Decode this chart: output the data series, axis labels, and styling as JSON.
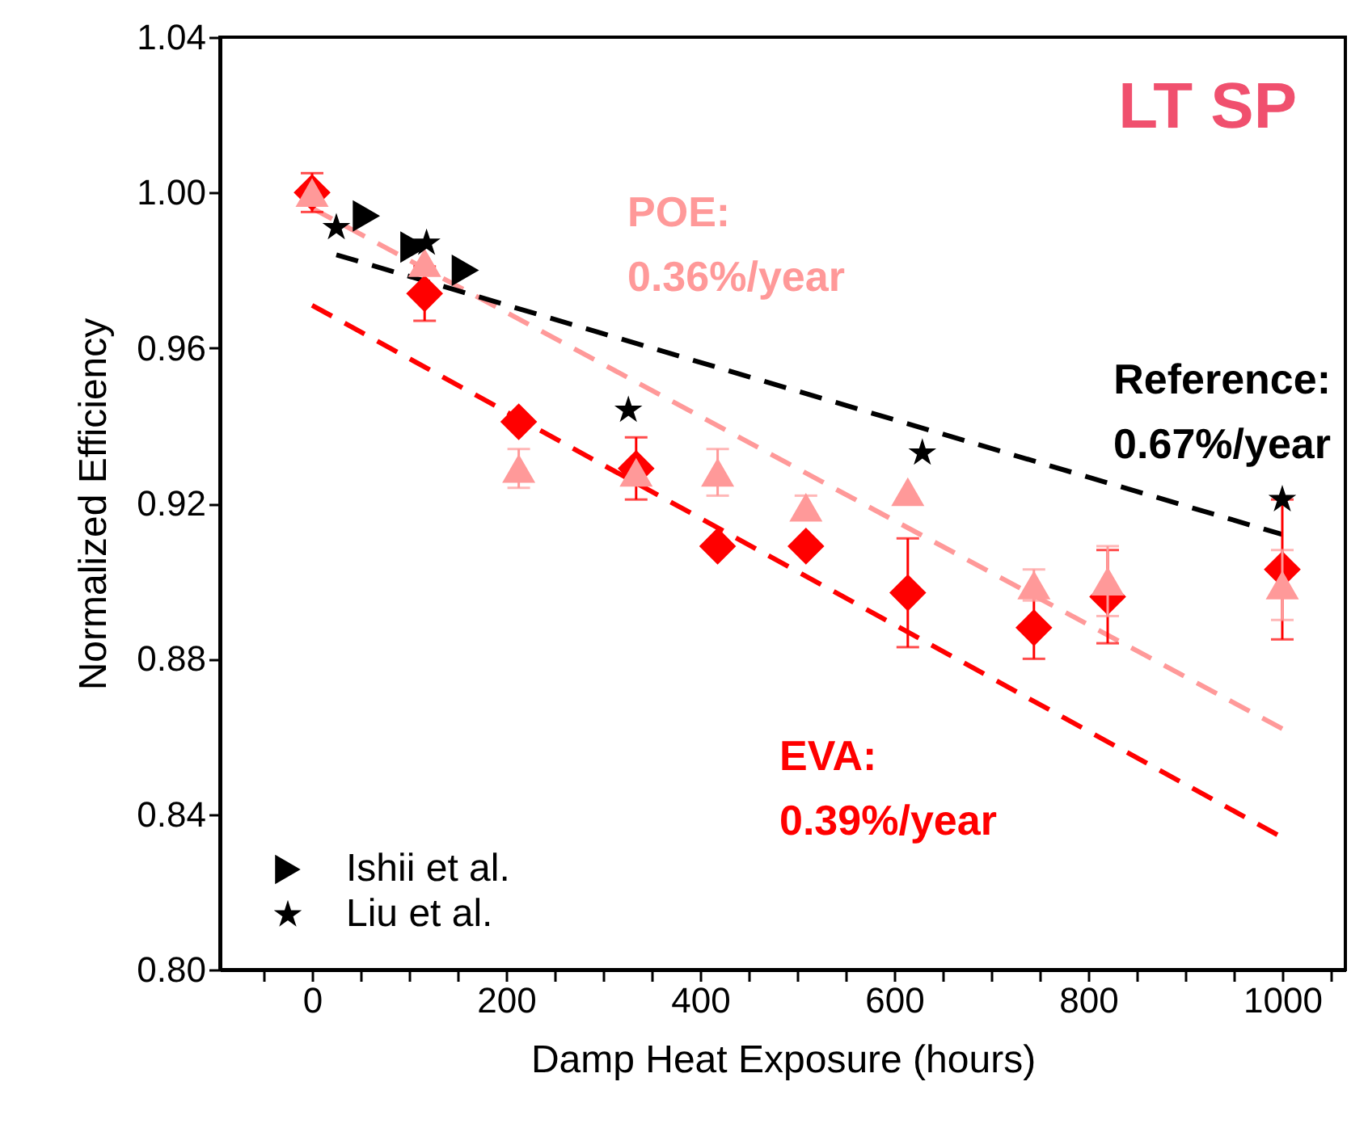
{
  "chart_data": {
    "type": "scatter",
    "title": "LT SP",
    "xlabel": "Damp Heat Exposure (hours)",
    "ylabel": "Normalized Efficiency",
    "xlim": [
      -95,
      1065
    ],
    "ylim": [
      0.8,
      1.04
    ],
    "xticks": [
      {
        "value": -50,
        "label": null
      },
      0,
      {
        "value": 50,
        "label": null
      },
      {
        "value": 100,
        "label": null
      },
      {
        "value": 150,
        "label": null
      },
      200,
      {
        "value": 250,
        "label": null
      },
      {
        "value": 300,
        "label": null
      },
      {
        "value": 350,
        "label": null
      },
      400,
      {
        "value": 450,
        "label": null
      },
      {
        "value": 500,
        "label": null
      },
      {
        "value": 550,
        "label": null
      },
      600,
      {
        "value": 650,
        "label": null
      },
      {
        "value": 700,
        "label": null
      },
      {
        "value": 750,
        "label": null
      },
      800,
      {
        "value": 850,
        "label": null
      },
      {
        "value": 900,
        "label": null
      },
      {
        "value": 950,
        "label": null
      },
      1000,
      {
        "value": 1050,
        "label": null
      }
    ],
    "yticks": [
      {
        "value": 0.8,
        "label": "0.80"
      },
      0.84,
      0.88,
      0.92,
      0.96,
      {
        "value": 1.0,
        "label": "1.00"
      },
      1.04
    ],
    "grid": false,
    "legend": "bottom left",
    "series": [
      {
        "marker": "diamond",
        "color": "#ff0000",
        "x": [
          0,
          116,
          213,
          334,
          418,
          509,
          614,
          744,
          820,
          1000
        ],
        "values": [
          1.0,
          0.974,
          0.941,
          0.929,
          0.909,
          0.909,
          0.897,
          0.888,
          0.896,
          0.903
        ],
        "errors": [
          0.005,
          0.007,
          null,
          0.008,
          null,
          null,
          0.014,
          0.008,
          0.012,
          0.018
        ]
      },
      {
        "marker": "triangle",
        "color": "#ff9999",
        "x": [
          0,
          116,
          213,
          334,
          418,
          509,
          614,
          744,
          820,
          1000
        ],
        "values": [
          1.0,
          0.982,
          0.929,
          0.928,
          0.928,
          0.919,
          0.923,
          0.899,
          0.9,
          0.899
        ],
        "errors": [
          null,
          null,
          0.005,
          null,
          0.006,
          0.003,
          null,
          0.004,
          0.009,
          0.009
        ]
      },
      {
        "marker": "triangle-right",
        "name": "Ishii et al.",
        "color": "#000000",
        "x": [
          56,
          105,
          158
        ],
        "values": [
          0.994,
          0.986,
          0.98
        ]
      },
      {
        "marker": "star",
        "name": "Liu et al.",
        "color": "#000000",
        "x": [
          25,
          118,
          326,
          629,
          1000
        ],
        "values": [
          0.991,
          0.987,
          0.944,
          0.933,
          0.921
        ]
      },
      {
        "type": "line",
        "line_style": "dashed",
        "name": "EVA:\n0.39%/year",
        "color": "#ff0000",
        "x": [
          0,
          1000
        ],
        "values": [
          0.971,
          0.834
        ]
      },
      {
        "type": "line",
        "line_style": "dashed",
        "name": "POE:\n0.36%/year",
        "color": "#ff9999",
        "x": [
          0,
          1000
        ],
        "values": [
          0.996,
          0.862
        ]
      },
      {
        "type": "line",
        "line_style": "dashed",
        "name": "Reference:\n0.67%/year",
        "color": "#000000",
        "x": [
          25,
          1000
        ],
        "values": [
          0.984,
          0.912
        ]
      }
    ]
  }
}
